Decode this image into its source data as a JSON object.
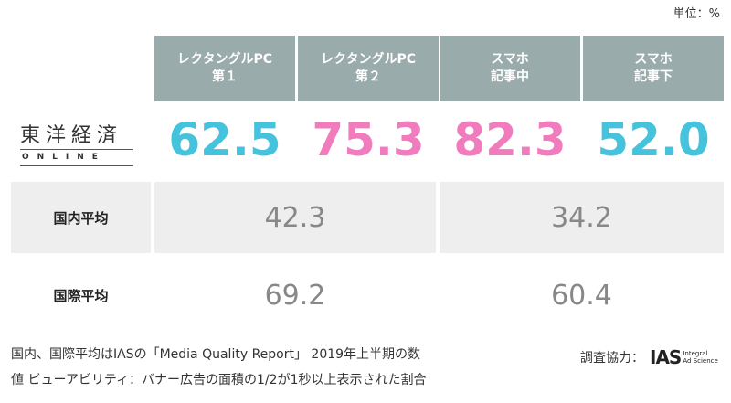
{
  "unit_label": "単位：%",
  "columns": [
    {
      "line1": "レクタングルPC",
      "line2": "第１"
    },
    {
      "line1": "レクタングルPC",
      "line2": "第２"
    },
    {
      "line1": "スマホ",
      "line2": "記事中"
    },
    {
      "line1": "スマホ",
      "line2": "記事下"
    }
  ],
  "logo": {
    "main": "東洋経済",
    "sub": "ONLINE"
  },
  "colors": {
    "header_bg": "#9aabab",
    "blue": "#45c3dc",
    "pink": "#f07cbe",
    "row_bg": "#eeeeee",
    "value_gray": "#888888"
  },
  "chart_data": {
    "type": "table",
    "categories": [
      "レクタングルPC 第１",
      "レクタングルPC 第２",
      "スマホ 記事中",
      "スマホ 記事下"
    ],
    "series": [
      {
        "name": "東洋経済 ONLINE",
        "values": [
          "62.5",
          "75.3",
          "82.3",
          "52.0"
        ],
        "colors": [
          "#45c3dc",
          "#f07cbe",
          "#f07cbe",
          "#45c3dc"
        ]
      },
      {
        "name": "国内平均",
        "values": [
          "42.3",
          "42.3",
          "34.2",
          "34.2"
        ]
      },
      {
        "name": "国際平均",
        "values": [
          "69.2",
          "69.2",
          "60.4",
          "60.4"
        ]
      }
    ]
  },
  "rows": [
    {
      "label": "国内平均",
      "pc": "42.3",
      "sp": "34.2"
    },
    {
      "label": "国際平均",
      "pc": "69.2",
      "sp": "60.4"
    }
  ],
  "note": {
    "line1": "国内、国際平均はIASの「Media Quality Report」 2019年上半期の数",
    "line2": "値 ビューアビリティ：バナー広告の面積の1/2が1秒以上表示された割合"
  },
  "credit": {
    "label": "調査協力：",
    "mark": "IAS",
    "logo_line1": "Integral",
    "logo_line2": "Ad Science"
  }
}
